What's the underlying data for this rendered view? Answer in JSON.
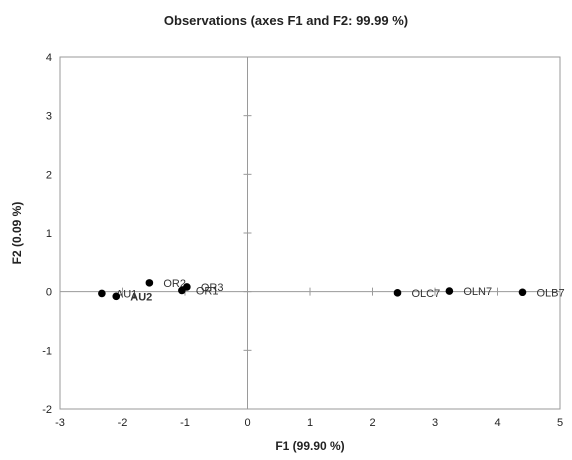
{
  "chart_data": {
    "type": "scatter",
    "title": "Observations (axes F1 and F2: 99.99 %)",
    "xlabel": "F1 (99.90 %)",
    "ylabel": "F2 (0.09 %)",
    "xlim": [
      -3,
      5
    ],
    "ylim": [
      -2,
      4
    ],
    "xticks": [
      "-3",
      "-2",
      "-1",
      "0",
      "1",
      "2",
      "3",
      "4",
      "5"
    ],
    "yticks": [
      "-2",
      "-1",
      "0",
      "1",
      "2",
      "3",
      "4"
    ],
    "grid": false,
    "points": [
      {
        "label": "AU1",
        "x": -2.33,
        "y": -0.03,
        "bold": false
      },
      {
        "label": "AU2",
        "x": -2.1,
        "y": -0.08,
        "bold": true
      },
      {
        "label": "OR2",
        "x": -1.57,
        "y": 0.15,
        "bold": false
      },
      {
        "label": "OR3",
        "x": -0.97,
        "y": 0.08,
        "bold": false
      },
      {
        "label": "OR1",
        "x": -1.05,
        "y": 0.02,
        "bold": false
      },
      {
        "label": "OLC7",
        "x": 2.4,
        "y": -0.02,
        "bold": false
      },
      {
        "label": "OLN7",
        "x": 3.23,
        "y": 0.01,
        "bold": false
      },
      {
        "label": "OLB7",
        "x": 4.4,
        "y": -0.01,
        "bold": false
      }
    ]
  }
}
